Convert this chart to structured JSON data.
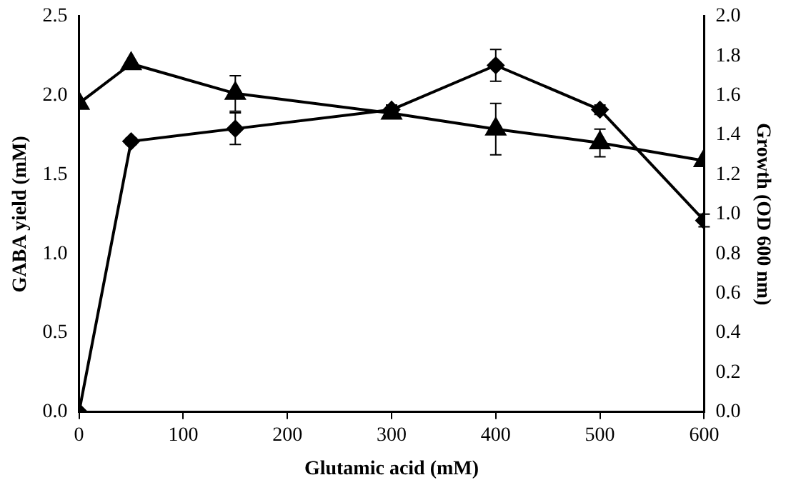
{
  "chart_data": {
    "type": "line",
    "xlabel": "Glutamic acid (mM)",
    "ylabel": "GABA yield (mM)",
    "y2label": "Growth (OD 600 nm)",
    "x": [
      0,
      50,
      150,
      300,
      400,
      500,
      600
    ],
    "xlim": [
      0,
      600
    ],
    "xticks": [
      0,
      100,
      200,
      300,
      400,
      500,
      600
    ],
    "ylim": [
      0,
      2.5
    ],
    "yticks": [
      {
        "value": 0,
        "label": "0.0"
      },
      {
        "value": 0.5,
        "label": "0.5"
      },
      {
        "value": 1,
        "label": "1.0"
      },
      {
        "value": 1.5,
        "label": "1.5"
      },
      {
        "value": 2,
        "label": "2.0"
      },
      {
        "value": 2.5,
        "label": "2.5"
      }
    ],
    "y2lim": [
      0,
      2
    ],
    "y2ticks": [
      {
        "value": 0,
        "label": "0.0"
      },
      {
        "value": 0.2,
        "label": "0.2"
      },
      {
        "value": 0.4,
        "label": "0.4"
      },
      {
        "value": 0.6,
        "label": "0.6"
      },
      {
        "value": 0.8,
        "label": "0.8"
      },
      {
        "value": 1,
        "label": "1.0"
      },
      {
        "value": 1.2,
        "label": "1.2"
      },
      {
        "value": 1.4,
        "label": "1.4"
      },
      {
        "value": 1.6,
        "label": "1.6"
      },
      {
        "value": 1.8,
        "label": "1.8"
      },
      {
        "value": 2,
        "label": "2.0"
      }
    ],
    "grid": false,
    "legend": false,
    "line_style": "solid",
    "series": [
      {
        "color": "#000000",
        "marker": "diamond",
        "values": [
          0,
          1.71,
          1.79,
          1.91,
          2.19,
          1.91,
          1.21
        ],
        "errors": [
          null,
          0.02,
          0.1,
          0.03,
          0.1,
          0.03,
          0.04
        ]
      },
      {
        "color": "#000000",
        "marker": "triangle",
        "axis": "y2",
        "values": [
          1.56,
          1.76,
          1.61,
          1.51,
          1.43,
          1.36,
          1.27
        ],
        "errors": [
          null,
          null,
          0.09,
          0.02,
          0.13,
          0.07,
          null
        ]
      }
    ]
  }
}
